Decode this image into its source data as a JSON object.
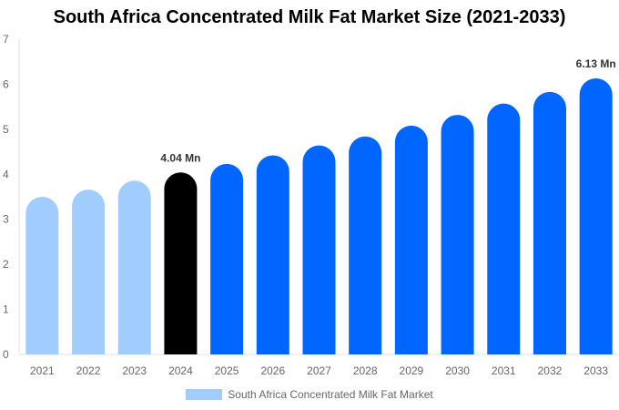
{
  "chart_data": {
    "type": "bar",
    "title": "South Africa Concentrated Milk Fat Market Size (2021-2033)",
    "categories": [
      "2021",
      "2022",
      "2023",
      "2024",
      "2025",
      "2026",
      "2027",
      "2028",
      "2029",
      "2030",
      "2031",
      "2032",
      "2033"
    ],
    "series": [
      {
        "name": "South Africa Concentrated Milk Fat Market",
        "values": [
          3.5,
          3.66,
          3.86,
          4.04,
          4.23,
          4.42,
          4.64,
          4.84,
          5.08,
          5.32,
          5.57,
          5.83,
          6.13
        ]
      }
    ],
    "data_labels": {
      "3": "4.04 Mn",
      "12": "6.13 Mn"
    },
    "ylim": [
      0,
      7
    ],
    "yticks": [
      0,
      1,
      2,
      3,
      4,
      5,
      6,
      7
    ],
    "grid": false,
    "legend_position": "bottom",
    "colors": {
      "historical": "#a0cdfd",
      "current": "#000000",
      "forecast": "#0066ff"
    },
    "color_groups": [
      "historical",
      "historical",
      "historical",
      "current",
      "forecast",
      "forecast",
      "forecast",
      "forecast",
      "forecast",
      "forecast",
      "forecast",
      "forecast",
      "forecast"
    ]
  }
}
